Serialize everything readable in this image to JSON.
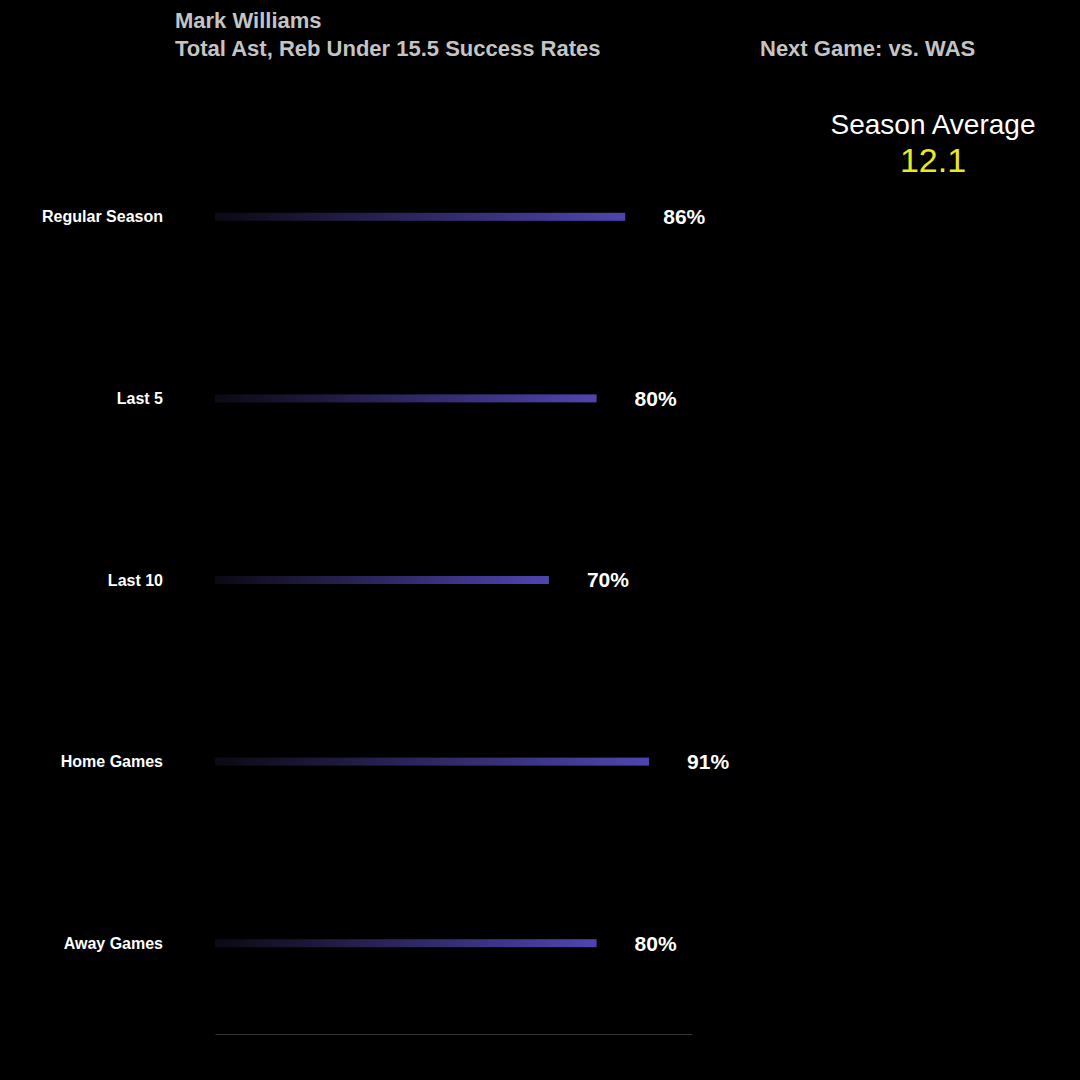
{
  "chart_data": {
    "type": "bar",
    "orientation": "horizontal",
    "title": "Mark Williams",
    "subtitle": "Total Ast, Reb Under 15.5 Success Rates",
    "next_game": "Next Game: vs. WAS",
    "season_average": {
      "label": "Season Average",
      "value": 12.1
    },
    "categories": [
      "Regular Season",
      "Last 5",
      "Last 10",
      "Home Games",
      "Away Games"
    ],
    "values": [
      86,
      80,
      70,
      91,
      80
    ],
    "value_labels": [
      "86%",
      "80%",
      "70%",
      "91%",
      "80%"
    ],
    "data_labels": true,
    "color": "#4f45b0",
    "xlim": [
      0,
      100
    ],
    "tick_labels": false,
    "grid": false
  }
}
